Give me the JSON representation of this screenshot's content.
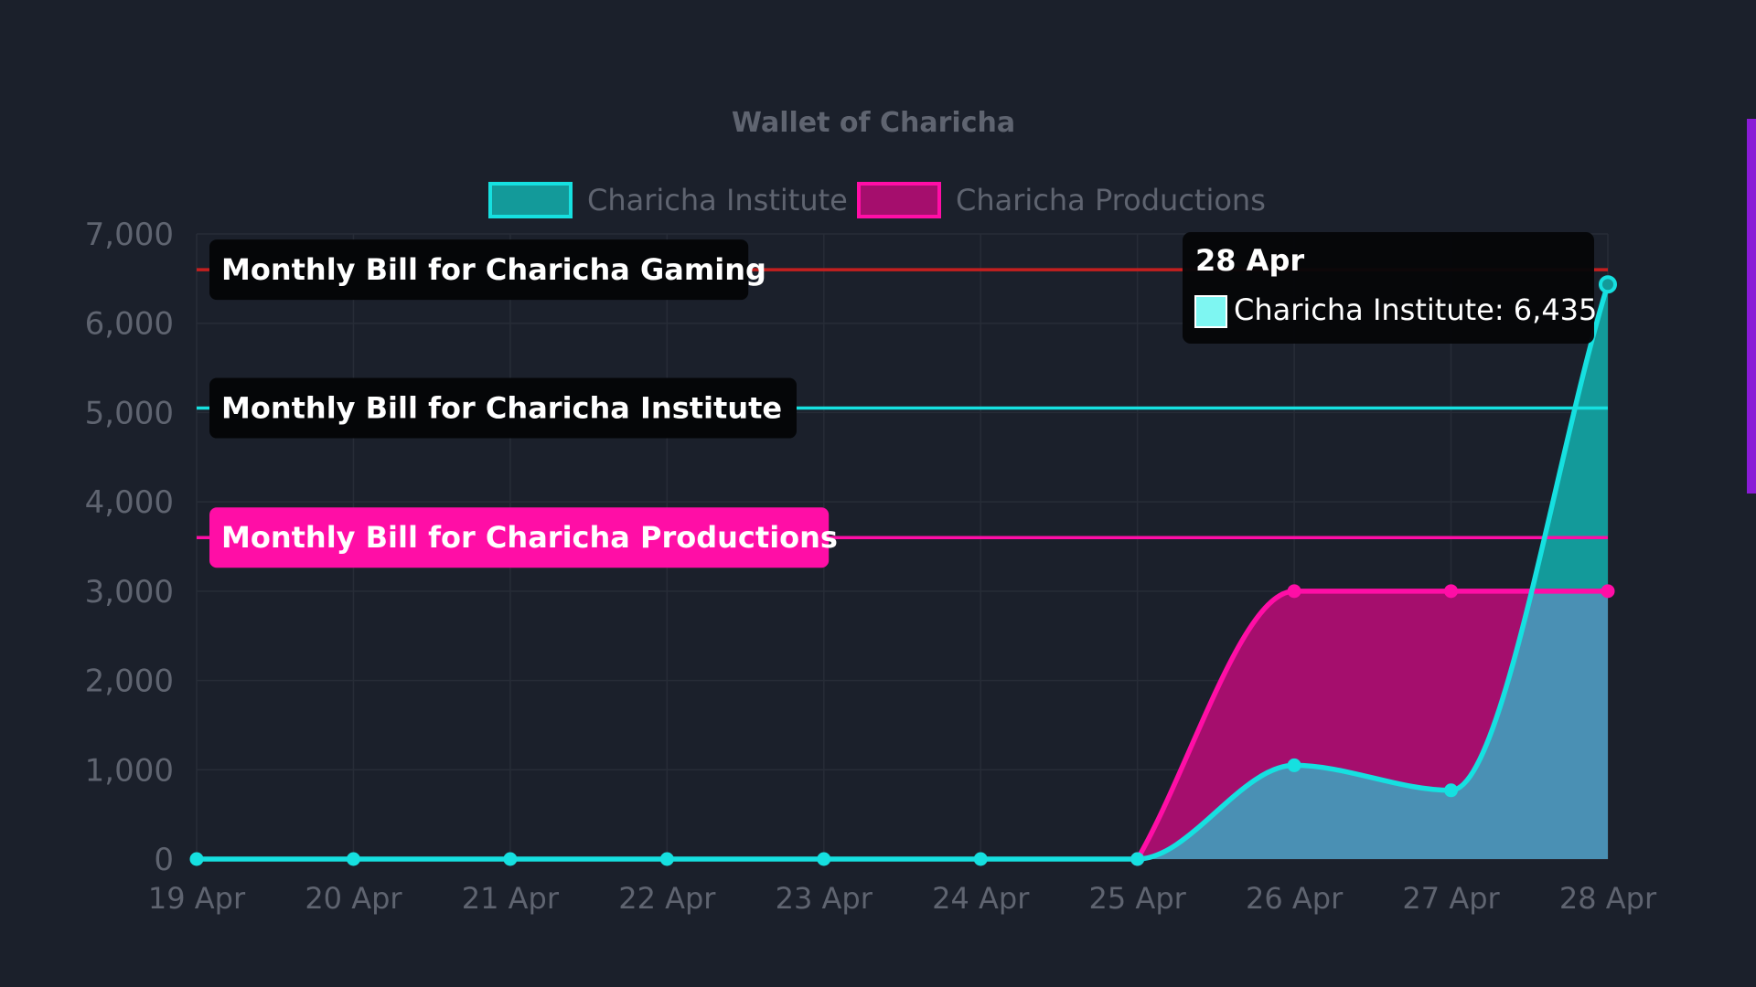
{
  "chart_data": {
    "type": "area",
    "title": "Wallet of Charicha",
    "categories": [
      "19 Apr",
      "20 Apr",
      "21 Apr",
      "22 Apr",
      "23 Apr",
      "24 Apr",
      "25 Apr",
      "26 Apr",
      "27 Apr",
      "28 Apr"
    ],
    "series": [
      {
        "name": "Charicha Institute",
        "values": [
          0,
          0,
          0,
          0,
          0,
          0,
          0,
          1050,
          770,
          6435
        ],
        "line_color": "#16e0e0",
        "fill_color": "#139a9a"
      },
      {
        "name": "Charicha Productions",
        "values": [
          null,
          null,
          null,
          null,
          null,
          null,
          0,
          3000,
          3000,
          3000
        ],
        "line_color": "#ff0ea6",
        "fill_color": "#a50e6d"
      }
    ],
    "overlap_fill_color": "#4a90b4",
    "ylim": [
      0,
      7000
    ],
    "yticks": [
      0,
      1000,
      2000,
      3000,
      4000,
      5000,
      6000,
      7000
    ],
    "ytick_labels": [
      "0",
      "1,000",
      "2,000",
      "3,000",
      "4,000",
      "5,000",
      "6,000",
      "7,000"
    ],
    "xlabel": "",
    "ylabel": "",
    "grid": true,
    "legend_position": "top-center",
    "reference_lines": [
      {
        "label": "Monthly Bill for Charicha Gaming",
        "value": 6600,
        "color": "#c41f1f",
        "label_bg": "#050608",
        "label_color": "#ffffff"
      },
      {
        "label": "Monthly Bill for Charicha Institute",
        "value": 5050,
        "color": "#16e0e0",
        "label_bg": "#050608",
        "label_color": "#ffffff"
      },
      {
        "label": "Monthly Bill for Charicha Productions",
        "value": 3600,
        "color": "#ff0ea6",
        "label_bg": "#ff0ea6",
        "label_color": "#ffffff"
      }
    ],
    "tooltip": {
      "title": "28 Apr",
      "text": "Charicha Institute: 6,435",
      "swatch_color": "#7ef6f2"
    }
  }
}
